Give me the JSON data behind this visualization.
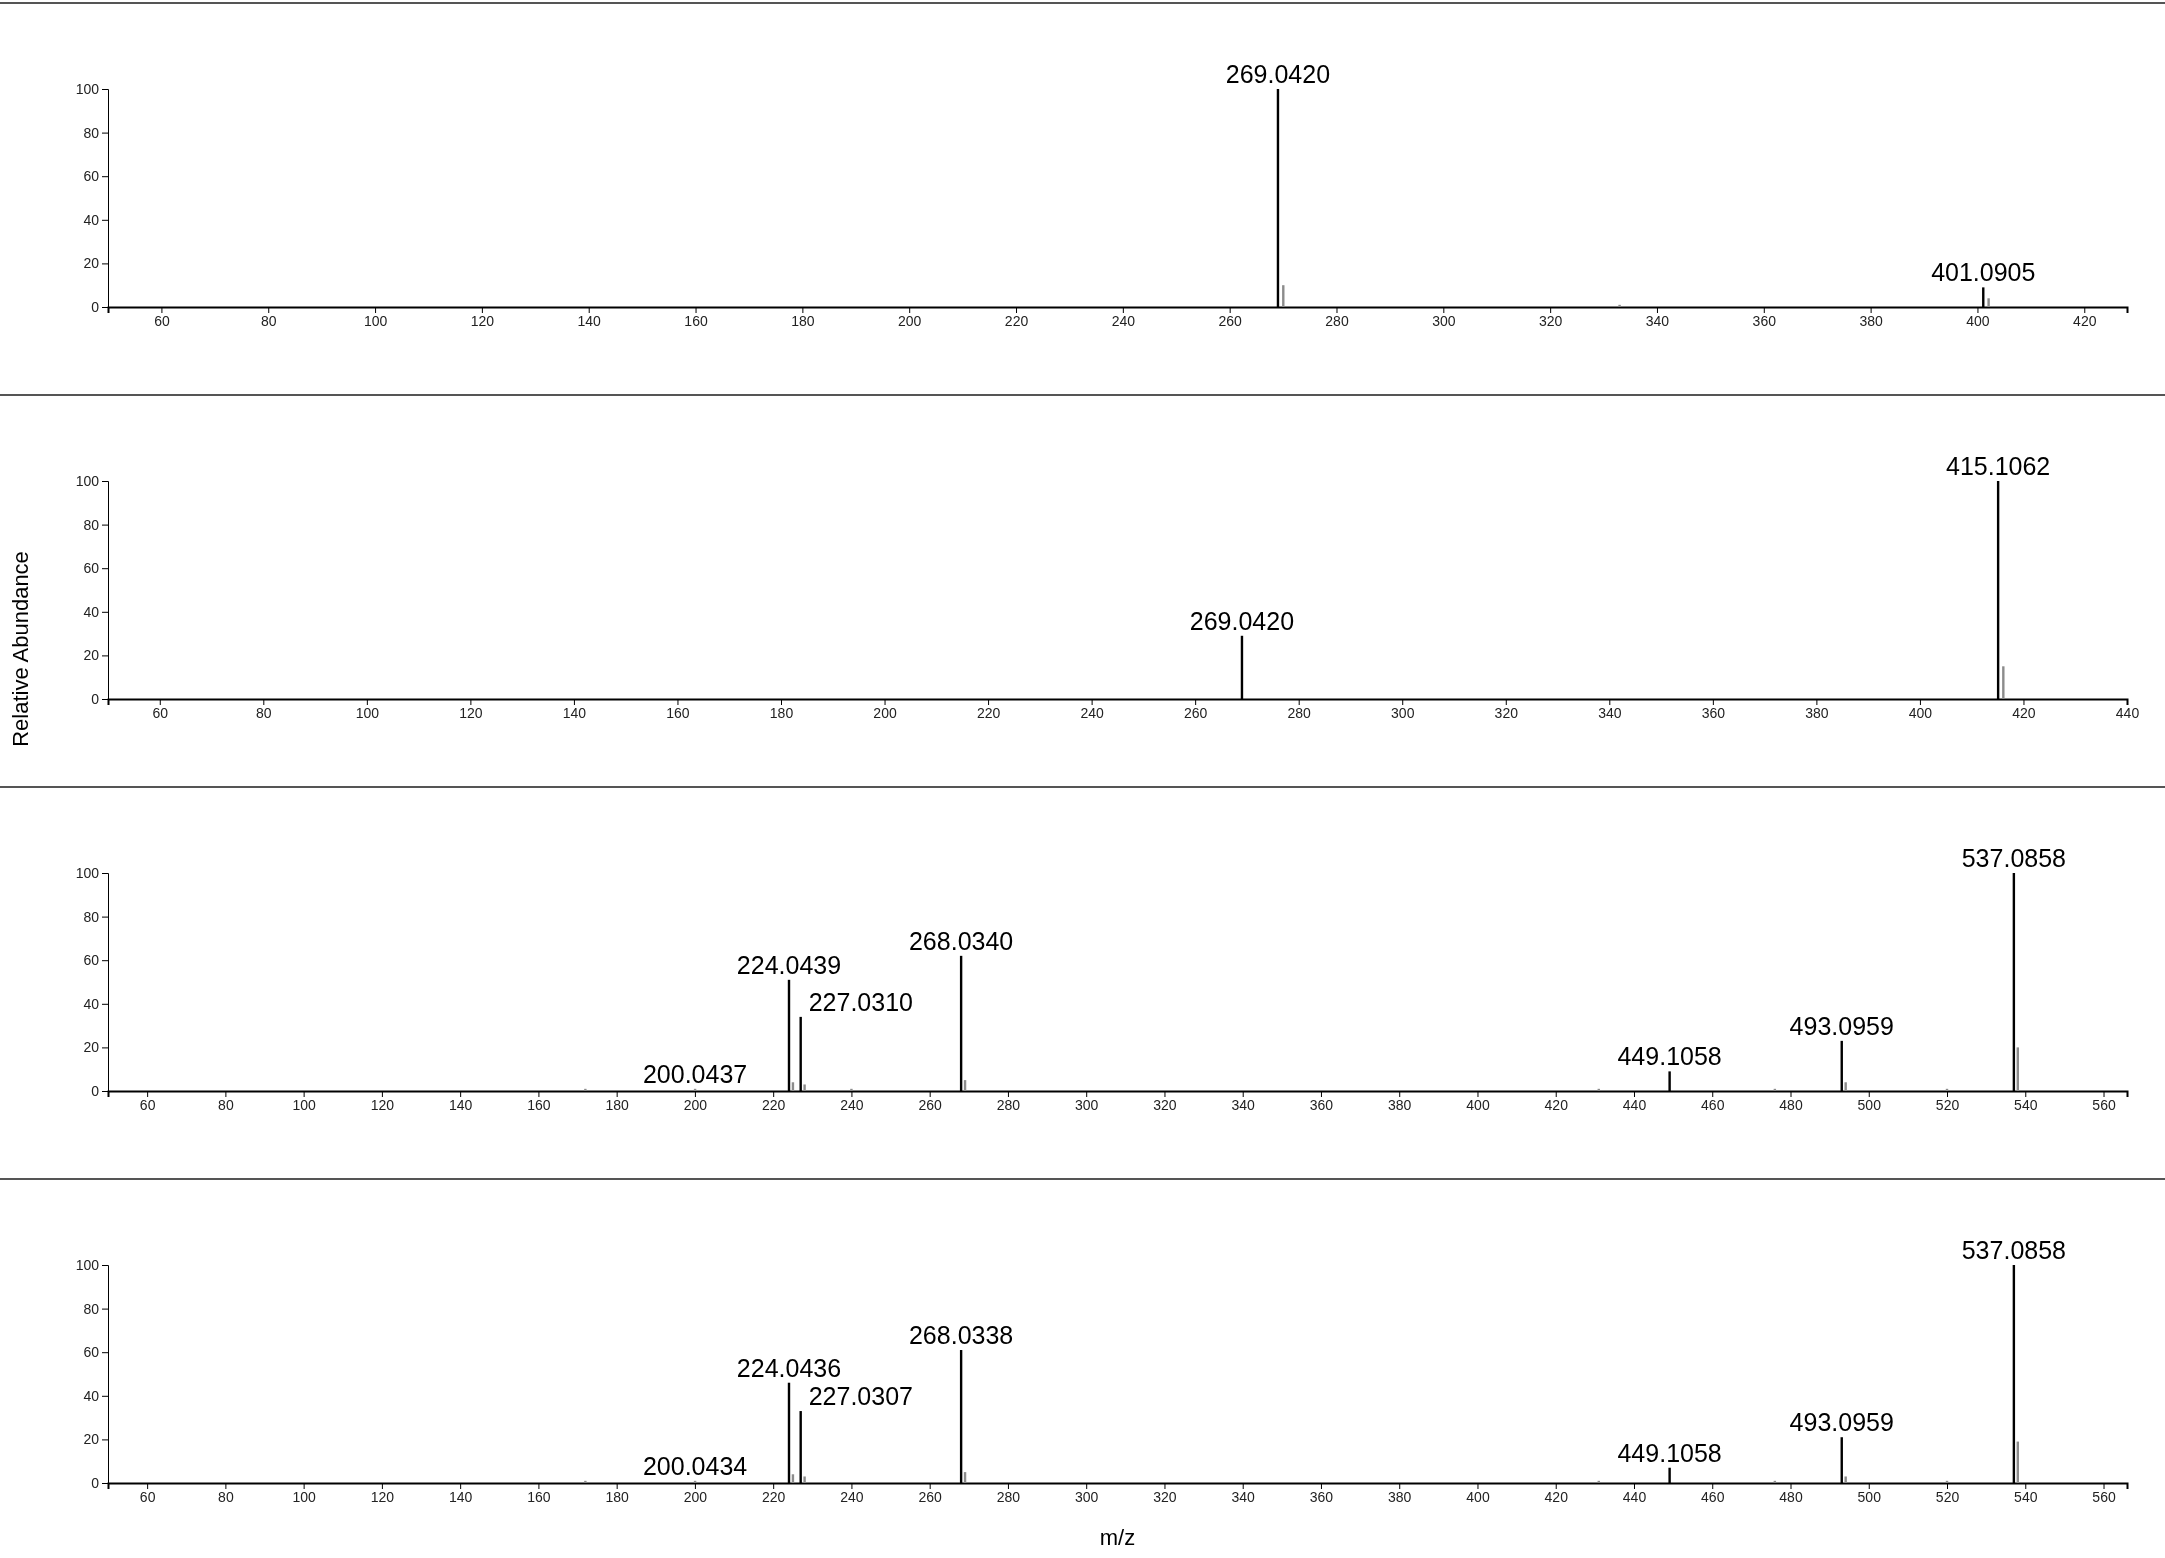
{
  "chart_data": [
    {
      "type": "bar",
      "x": [
        269.042,
        270.04,
        333,
        401.0905,
        402.09
      ],
      "values": [
        100,
        10,
        1,
        9,
        4
      ],
      "colors": [
        "#000000",
        "#8c8c8c",
        "#8c8c8c",
        "#000000",
        "#8c8c8c"
      ],
      "xlim": [
        50,
        428
      ],
      "xticks": [
        60,
        80,
        100,
        120,
        140,
        160,
        180,
        200,
        220,
        240,
        260,
        280,
        300,
        320,
        340,
        360,
        380,
        400,
        420
      ],
      "ylim": [
        0,
        100
      ],
      "yticks": [
        0,
        20,
        40,
        60,
        80,
        100
      ],
      "annotations": [
        {
          "text": "269.0420",
          "x": 269.042,
          "y": 100
        },
        {
          "text": "401.0905",
          "x": 401.0905,
          "y": 9
        }
      ]
    },
    {
      "type": "bar",
      "ylabel": "Relative Abundance",
      "x": [
        269.042,
        415.1062,
        416.11
      ],
      "values": [
        29,
        100,
        15
      ],
      "colors": [
        "#000000",
        "#000000",
        "#8c8c8c"
      ],
      "xlim": [
        50,
        440
      ],
      "xticks": [
        60,
        80,
        100,
        120,
        140,
        160,
        180,
        200,
        220,
        240,
        260,
        280,
        300,
        320,
        340,
        360,
        380,
        400,
        420,
        440
      ],
      "ylim": [
        0,
        100
      ],
      "yticks": [
        0,
        20,
        40,
        60,
        80,
        100
      ],
      "annotations": [
        {
          "text": "269.0420",
          "x": 269.042,
          "y": 29
        },
        {
          "text": "415.1062",
          "x": 415.1062,
          "y": 100
        }
      ]
    },
    {
      "type": "bar",
      "x": [
        172,
        200.0437,
        224.0439,
        225.05,
        227.031,
        228.03,
        240,
        268.034,
        269.04,
        431,
        449.1058,
        476,
        493.0959,
        494.1,
        520,
        537.0858,
        538.09
      ],
      "values": [
        1,
        1,
        51,
        4,
        34,
        3,
        1,
        62,
        5,
        1,
        9,
        1,
        23,
        4,
        1,
        100,
        20
      ],
      "colors": [
        "#8c8c8c",
        "#8c8c8c",
        "#000000",
        "#8c8c8c",
        "#000000",
        "#8c8c8c",
        "#8c8c8c",
        "#000000",
        "#8c8c8c",
        "#8c8c8c",
        "#000000",
        "#8c8c8c",
        "#000000",
        "#8c8c8c",
        "#8c8c8c",
        "#000000",
        "#8c8c8c"
      ],
      "xlim": [
        50,
        566
      ],
      "xticks": [
        60,
        80,
        100,
        120,
        140,
        160,
        180,
        200,
        220,
        240,
        260,
        280,
        300,
        320,
        340,
        360,
        380,
        400,
        420,
        440,
        460,
        480,
        500,
        520,
        540,
        560
      ],
      "ylim": [
        0,
        100
      ],
      "yticks": [
        0,
        20,
        40,
        60,
        80,
        100
      ],
      "annotations": [
        {
          "text": "200.0437",
          "x": 200.0437,
          "y": 1
        },
        {
          "text": "224.0439",
          "x": 224.0439,
          "y": 51
        },
        {
          "text": "227.0310",
          "x": 227.031,
          "y": 34
        },
        {
          "text": "268.0340",
          "x": 268.034,
          "y": 62
        },
        {
          "text": "449.1058",
          "x": 449.1058,
          "y": 9
        },
        {
          "text": "493.0959",
          "x": 493.0959,
          "y": 23
        },
        {
          "text": "537.0858",
          "x": 537.0858,
          "y": 100
        }
      ]
    },
    {
      "type": "bar",
      "xlabel": "m/z",
      "x": [
        172,
        200.0434,
        224.0436,
        225.05,
        227.0307,
        228.03,
        268.0338,
        269.04,
        431,
        449.1058,
        476,
        493.0959,
        494.1,
        520,
        537.0858,
        538.09
      ],
      "values": [
        1,
        1,
        46,
        4,
        33,
        3,
        61,
        5,
        1,
        7,
        1,
        21,
        3,
        1,
        100,
        19
      ],
      "colors": [
        "#8c8c8c",
        "#8c8c8c",
        "#000000",
        "#8c8c8c",
        "#000000",
        "#8c8c8c",
        "#000000",
        "#8c8c8c",
        "#8c8c8c",
        "#000000",
        "#8c8c8c",
        "#000000",
        "#8c8c8c",
        "#8c8c8c",
        "#000000",
        "#8c8c8c"
      ],
      "xlim": [
        50,
        566
      ],
      "xticks": [
        60,
        80,
        100,
        120,
        140,
        160,
        180,
        200,
        220,
        240,
        260,
        280,
        300,
        320,
        340,
        360,
        380,
        400,
        420,
        440,
        460,
        480,
        500,
        520,
        540,
        560
      ],
      "ylim": [
        0,
        100
      ],
      "yticks": [
        0,
        20,
        40,
        60,
        80,
        100
      ],
      "annotations": [
        {
          "text": "200.0434",
          "x": 200.0434,
          "y": 1
        },
        {
          "text": "224.0436",
          "x": 224.0436,
          "y": 46
        },
        {
          "text": "227.0307",
          "x": 227.0307,
          "y": 33
        },
        {
          "text": "268.0338",
          "x": 268.0338,
          "y": 61
        },
        {
          "text": "449.1058",
          "x": 449.1058,
          "y": 7
        },
        {
          "text": "493.0959",
          "x": 493.0959,
          "y": 21
        },
        {
          "text": "537.0858",
          "x": 537.0858,
          "y": 100
        }
      ]
    }
  ]
}
